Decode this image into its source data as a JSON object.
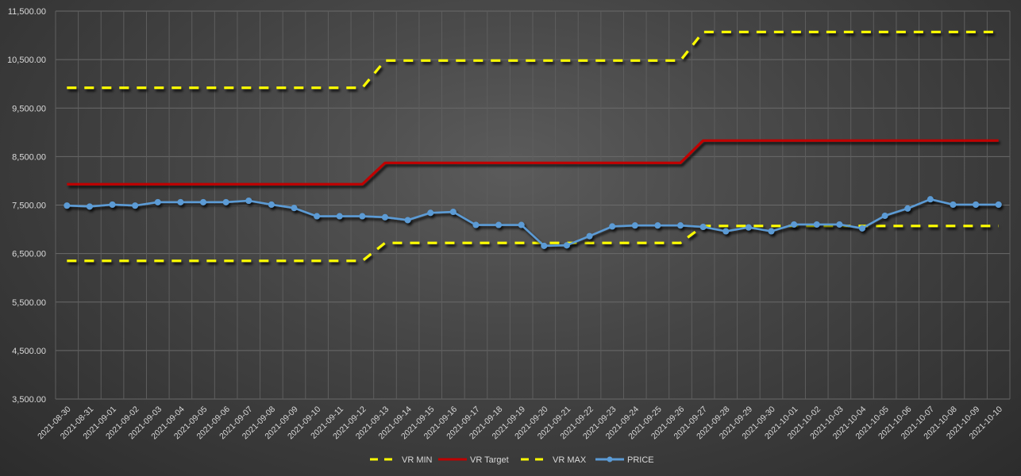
{
  "chart_data": {
    "type": "line",
    "title": "",
    "xlabel": "",
    "ylabel": "",
    "ylim": [
      3500,
      11500
    ],
    "y_ticks": [
      3500,
      4500,
      5500,
      6500,
      7500,
      8500,
      9500,
      10500,
      11500
    ],
    "y_tick_labels": [
      "3,500.00",
      "4,500.00",
      "5,500.00",
      "6,500.00",
      "7,500.00",
      "8,500.00",
      "9,500.00",
      "10,500.00",
      "11,500.00"
    ],
    "grid": true,
    "legend_position": "bottom",
    "x": [
      "2021-08-30",
      "2021-08-31",
      "2021-09-01",
      "2021-09-02",
      "2021-09-03",
      "2021-09-04",
      "2021-09-05",
      "2021-09-06",
      "2021-09-07",
      "2021-09-08",
      "2021-09-09",
      "2021-09-10",
      "2021-09-11",
      "2021-09-12",
      "2021-09-13",
      "2021-09-14",
      "2021-09-15",
      "2021-09-16",
      "2021-09-17",
      "2021-09-18",
      "2021-09-19",
      "2021-09-20",
      "2021-09-21",
      "2021-09-22",
      "2021-09-23",
      "2021-09-24",
      "2021-09-25",
      "2021-09-26",
      "2021-09-27",
      "2021-09-28",
      "2021-09-29",
      "2021-09-30",
      "2021-10-01",
      "2021-10-02",
      "2021-10-03",
      "2021-10-04",
      "2021-10-05",
      "2021-10-06",
      "2021-10-07",
      "2021-10-08",
      "2021-10-09",
      "2021-10-10"
    ],
    "series": [
      {
        "name": "VR MIN",
        "color": "#ffff00",
        "style": "dashed",
        "values": [
          6350,
          6350,
          6350,
          6350,
          6350,
          6350,
          6350,
          6350,
          6350,
          6350,
          6350,
          6350,
          6350,
          6350,
          6720,
          6720,
          6720,
          6720,
          6720,
          6720,
          6720,
          6720,
          6720,
          6720,
          6720,
          6720,
          6720,
          6720,
          7070,
          7070,
          7070,
          7070,
          7070,
          7070,
          7070,
          7070,
          7070,
          7070,
          7070,
          7070,
          7070,
          7070
        ]
      },
      {
        "name": "VR Target",
        "color": "#c00000",
        "style": "solid",
        "values": [
          7930,
          7930,
          7930,
          7930,
          7930,
          7930,
          7930,
          7930,
          7930,
          7930,
          7930,
          7930,
          7930,
          7930,
          8370,
          8370,
          8370,
          8370,
          8370,
          8370,
          8370,
          8370,
          8370,
          8370,
          8370,
          8370,
          8370,
          8370,
          8830,
          8830,
          8830,
          8830,
          8830,
          8830,
          8830,
          8830,
          8830,
          8830,
          8830,
          8830,
          8830,
          8830
        ]
      },
      {
        "name": "VR MAX",
        "color": "#ffff00",
        "style": "dashed",
        "values": [
          9920,
          9920,
          9920,
          9920,
          9920,
          9920,
          9920,
          9920,
          9920,
          9920,
          9920,
          9920,
          9920,
          9920,
          10480,
          10480,
          10480,
          10480,
          10480,
          10480,
          10480,
          10480,
          10480,
          10480,
          10480,
          10480,
          10480,
          10480,
          11070,
          11070,
          11070,
          11070,
          11070,
          11070,
          11070,
          11070,
          11070,
          11070,
          11070,
          11070,
          11070,
          11070
        ]
      },
      {
        "name": "PRICE",
        "color": "#5b9bd5",
        "style": "solid-marker",
        "values": [
          7490,
          7470,
          7510,
          7490,
          7560,
          7560,
          7560,
          7560,
          7590,
          7510,
          7440,
          7270,
          7270,
          7270,
          7250,
          7190,
          7340,
          7360,
          7090,
          7090,
          7090,
          6660,
          6670,
          6860,
          7060,
          7080,
          7080,
          7080,
          7050,
          6960,
          7040,
          6960,
          7100,
          7100,
          7100,
          7020,
          7280,
          7430,
          7620,
          7510,
          7510,
          7510
        ]
      }
    ]
  }
}
